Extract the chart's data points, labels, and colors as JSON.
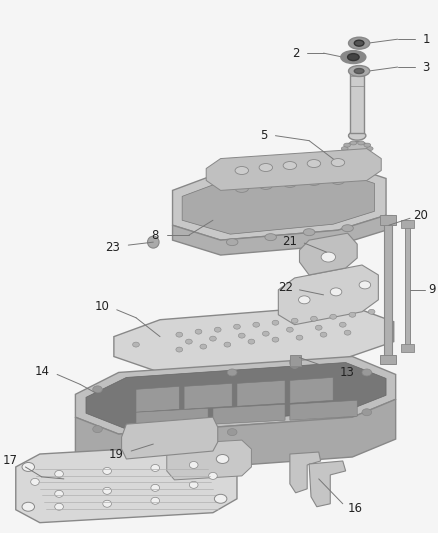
{
  "background_color": "#f5f5f5",
  "edge_color": "#888888",
  "dark_fill": "#888888",
  "light_fill": "#d8d8d8",
  "mid_fill": "#bbbbbb",
  "white_fill": "#f0f0f0",
  "label_color": "#222222",
  "leader_color": "#777777",
  "lw_thick": 1.0,
  "lw_thin": 0.6,
  "fig_w": 4.38,
  "fig_h": 5.33,
  "dpi": 100
}
